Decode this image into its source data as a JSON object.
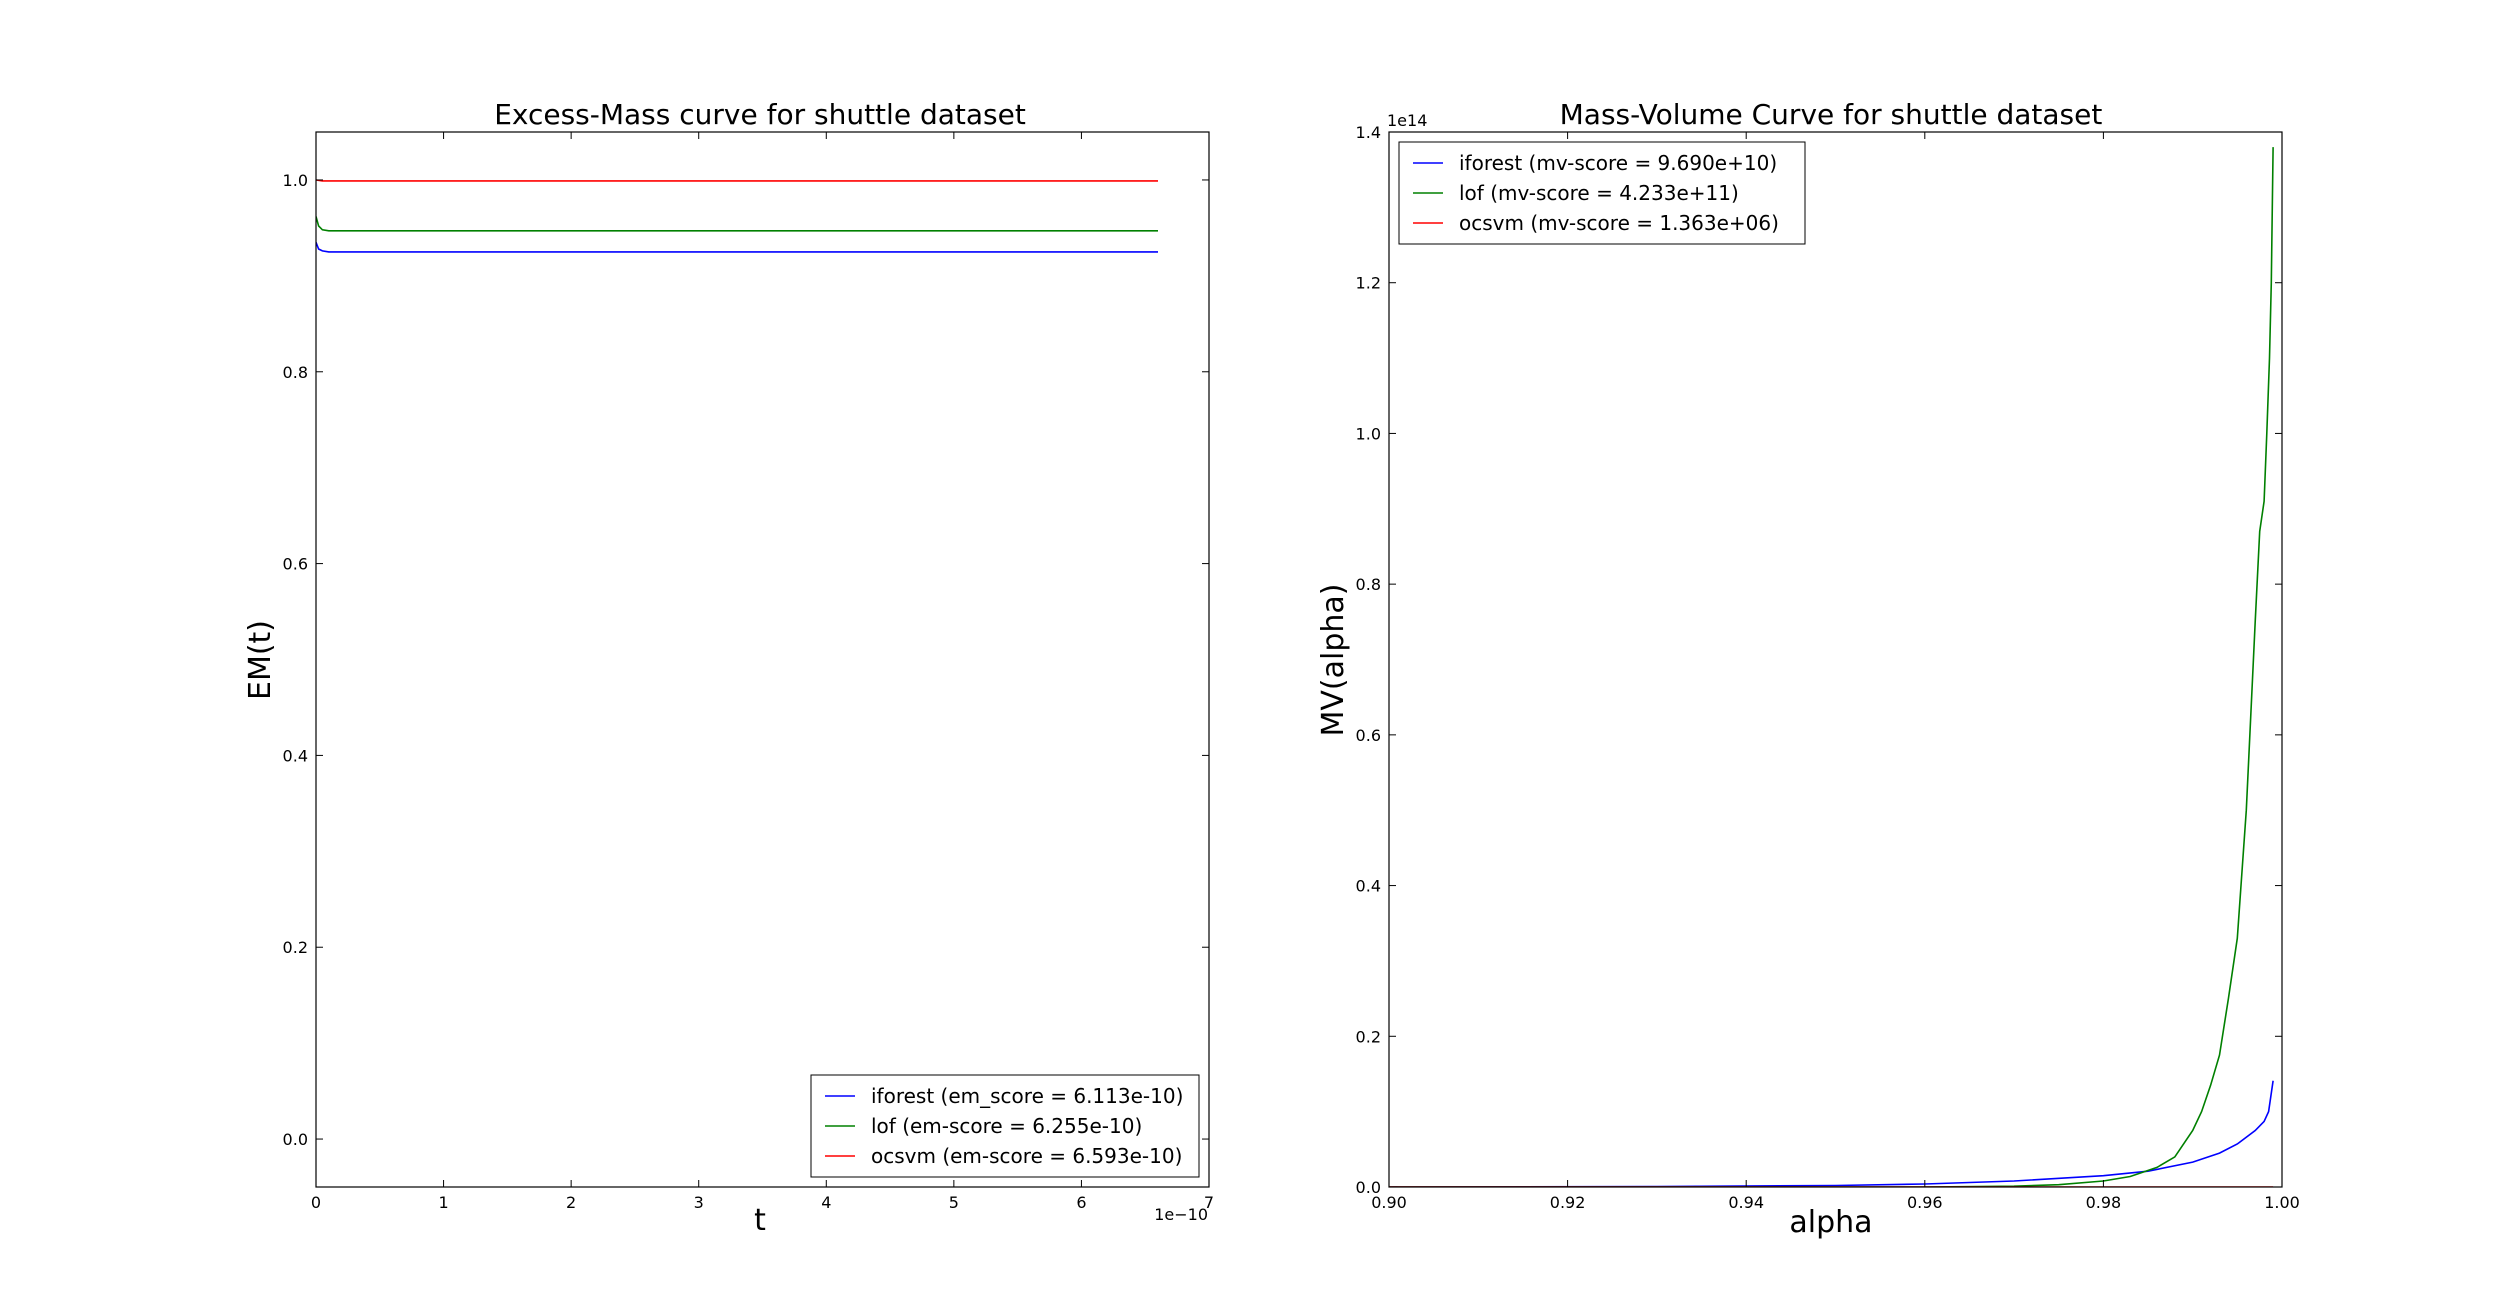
{
  "figure": {
    "background": "#ffffff"
  },
  "chart_data": [
    {
      "type": "line",
      "title": "Excess-Mass curve for shuttle dataset",
      "xlabel": "t",
      "ylabel": "EM(t)",
      "xlim": [
        0,
        7
      ],
      "ylim": [
        -0.05,
        1.05
      ],
      "x_scale_label": "1e−10",
      "xticks": [
        0,
        1,
        2,
        3,
        4,
        5,
        6,
        7
      ],
      "xtick_labels": [
        "0",
        "1",
        "2",
        "3",
        "4",
        "5",
        "6",
        "7"
      ],
      "yticks": [
        0.0,
        0.2,
        0.4,
        0.6,
        0.8,
        1.0
      ],
      "ytick_labels": [
        "0.0",
        "0.2",
        "0.4",
        "0.6",
        "0.8",
        "1.0"
      ],
      "grid": false,
      "legend_position": "bottom-right",
      "series": [
        {
          "name": "iforest (em_score = 6.113e-10)",
          "color": "#0000ff",
          "x": [
            0,
            0.02,
            0.05,
            0.1,
            6.6
          ],
          "y": [
            0.935,
            0.928,
            0.926,
            0.925,
            0.925
          ]
        },
        {
          "name": "lof (em-score = 6.255e-10)",
          "color": "#008000",
          "x": [
            0,
            0.02,
            0.05,
            0.1,
            6.6
          ],
          "y": [
            0.962,
            0.952,
            0.948,
            0.947,
            0.947
          ]
        },
        {
          "name": "ocsvm (em-score = 6.593e-10)",
          "color": "#ff0000",
          "x": [
            0,
            0.05,
            6.6
          ],
          "y": [
            1.0,
            0.999,
            0.999
          ]
        }
      ]
    },
    {
      "type": "line",
      "title": "Mass-Volume Curve for shuttle dataset",
      "xlabel": "alpha",
      "ylabel": "MV(alpha)",
      "xlim": [
        0.9,
        1.0
      ],
      "ylim": [
        0,
        1.4
      ],
      "y_scale_label": "1e14",
      "xticks": [
        0.9,
        0.92,
        0.94,
        0.96,
        0.98,
        1.0
      ],
      "xtick_labels": [
        "0.90",
        "0.92",
        "0.94",
        "0.96",
        "0.98",
        "1.00"
      ],
      "yticks": [
        0.0,
        0.2,
        0.4,
        0.6,
        0.8,
        1.0,
        1.2,
        1.4
      ],
      "ytick_labels": [
        "0.0",
        "0.2",
        "0.4",
        "0.6",
        "0.8",
        "1.0",
        "1.2",
        "1.4"
      ],
      "grid": false,
      "legend_position": "top-left",
      "series": [
        {
          "name": "iforest (mv-score = 9.690e+10)",
          "color": "#0000ff",
          "x": [
            0.9,
            0.93,
            0.95,
            0.96,
            0.97,
            0.98,
            0.985,
            0.99,
            0.993,
            0.995,
            0.997,
            0.998,
            0.9985,
            0.999
          ],
          "y": [
            0.0,
            0.0005,
            0.002,
            0.004,
            0.008,
            0.015,
            0.021,
            0.033,
            0.045,
            0.057,
            0.075,
            0.087,
            0.1,
            0.141
          ]
        },
        {
          "name": "lof (mv-score = 4.233e+11)",
          "color": "#008000",
          "x": [
            0.9,
            0.96,
            0.97,
            0.975,
            0.98,
            0.983,
            0.986,
            0.988,
            0.99,
            0.991,
            0.992,
            0.993,
            0.994,
            0.995,
            0.996,
            0.997,
            0.9975,
            0.998,
            0.9983,
            0.9986,
            0.9988,
            0.999
          ],
          "y": [
            0.0,
            0.0,
            0.001,
            0.003,
            0.008,
            0.014,
            0.026,
            0.04,
            0.075,
            0.1,
            0.135,
            0.175,
            0.25,
            0.33,
            0.5,
            0.75,
            0.87,
            0.91,
            1.0,
            1.1,
            1.2,
            1.38
          ]
        },
        {
          "name": "ocsvm (mv-score = 1.363e+06)",
          "color": "#ff0000",
          "x": [
            0.9,
            0.999
          ],
          "y": [
            0.0,
            0.0
          ]
        }
      ]
    }
  ]
}
